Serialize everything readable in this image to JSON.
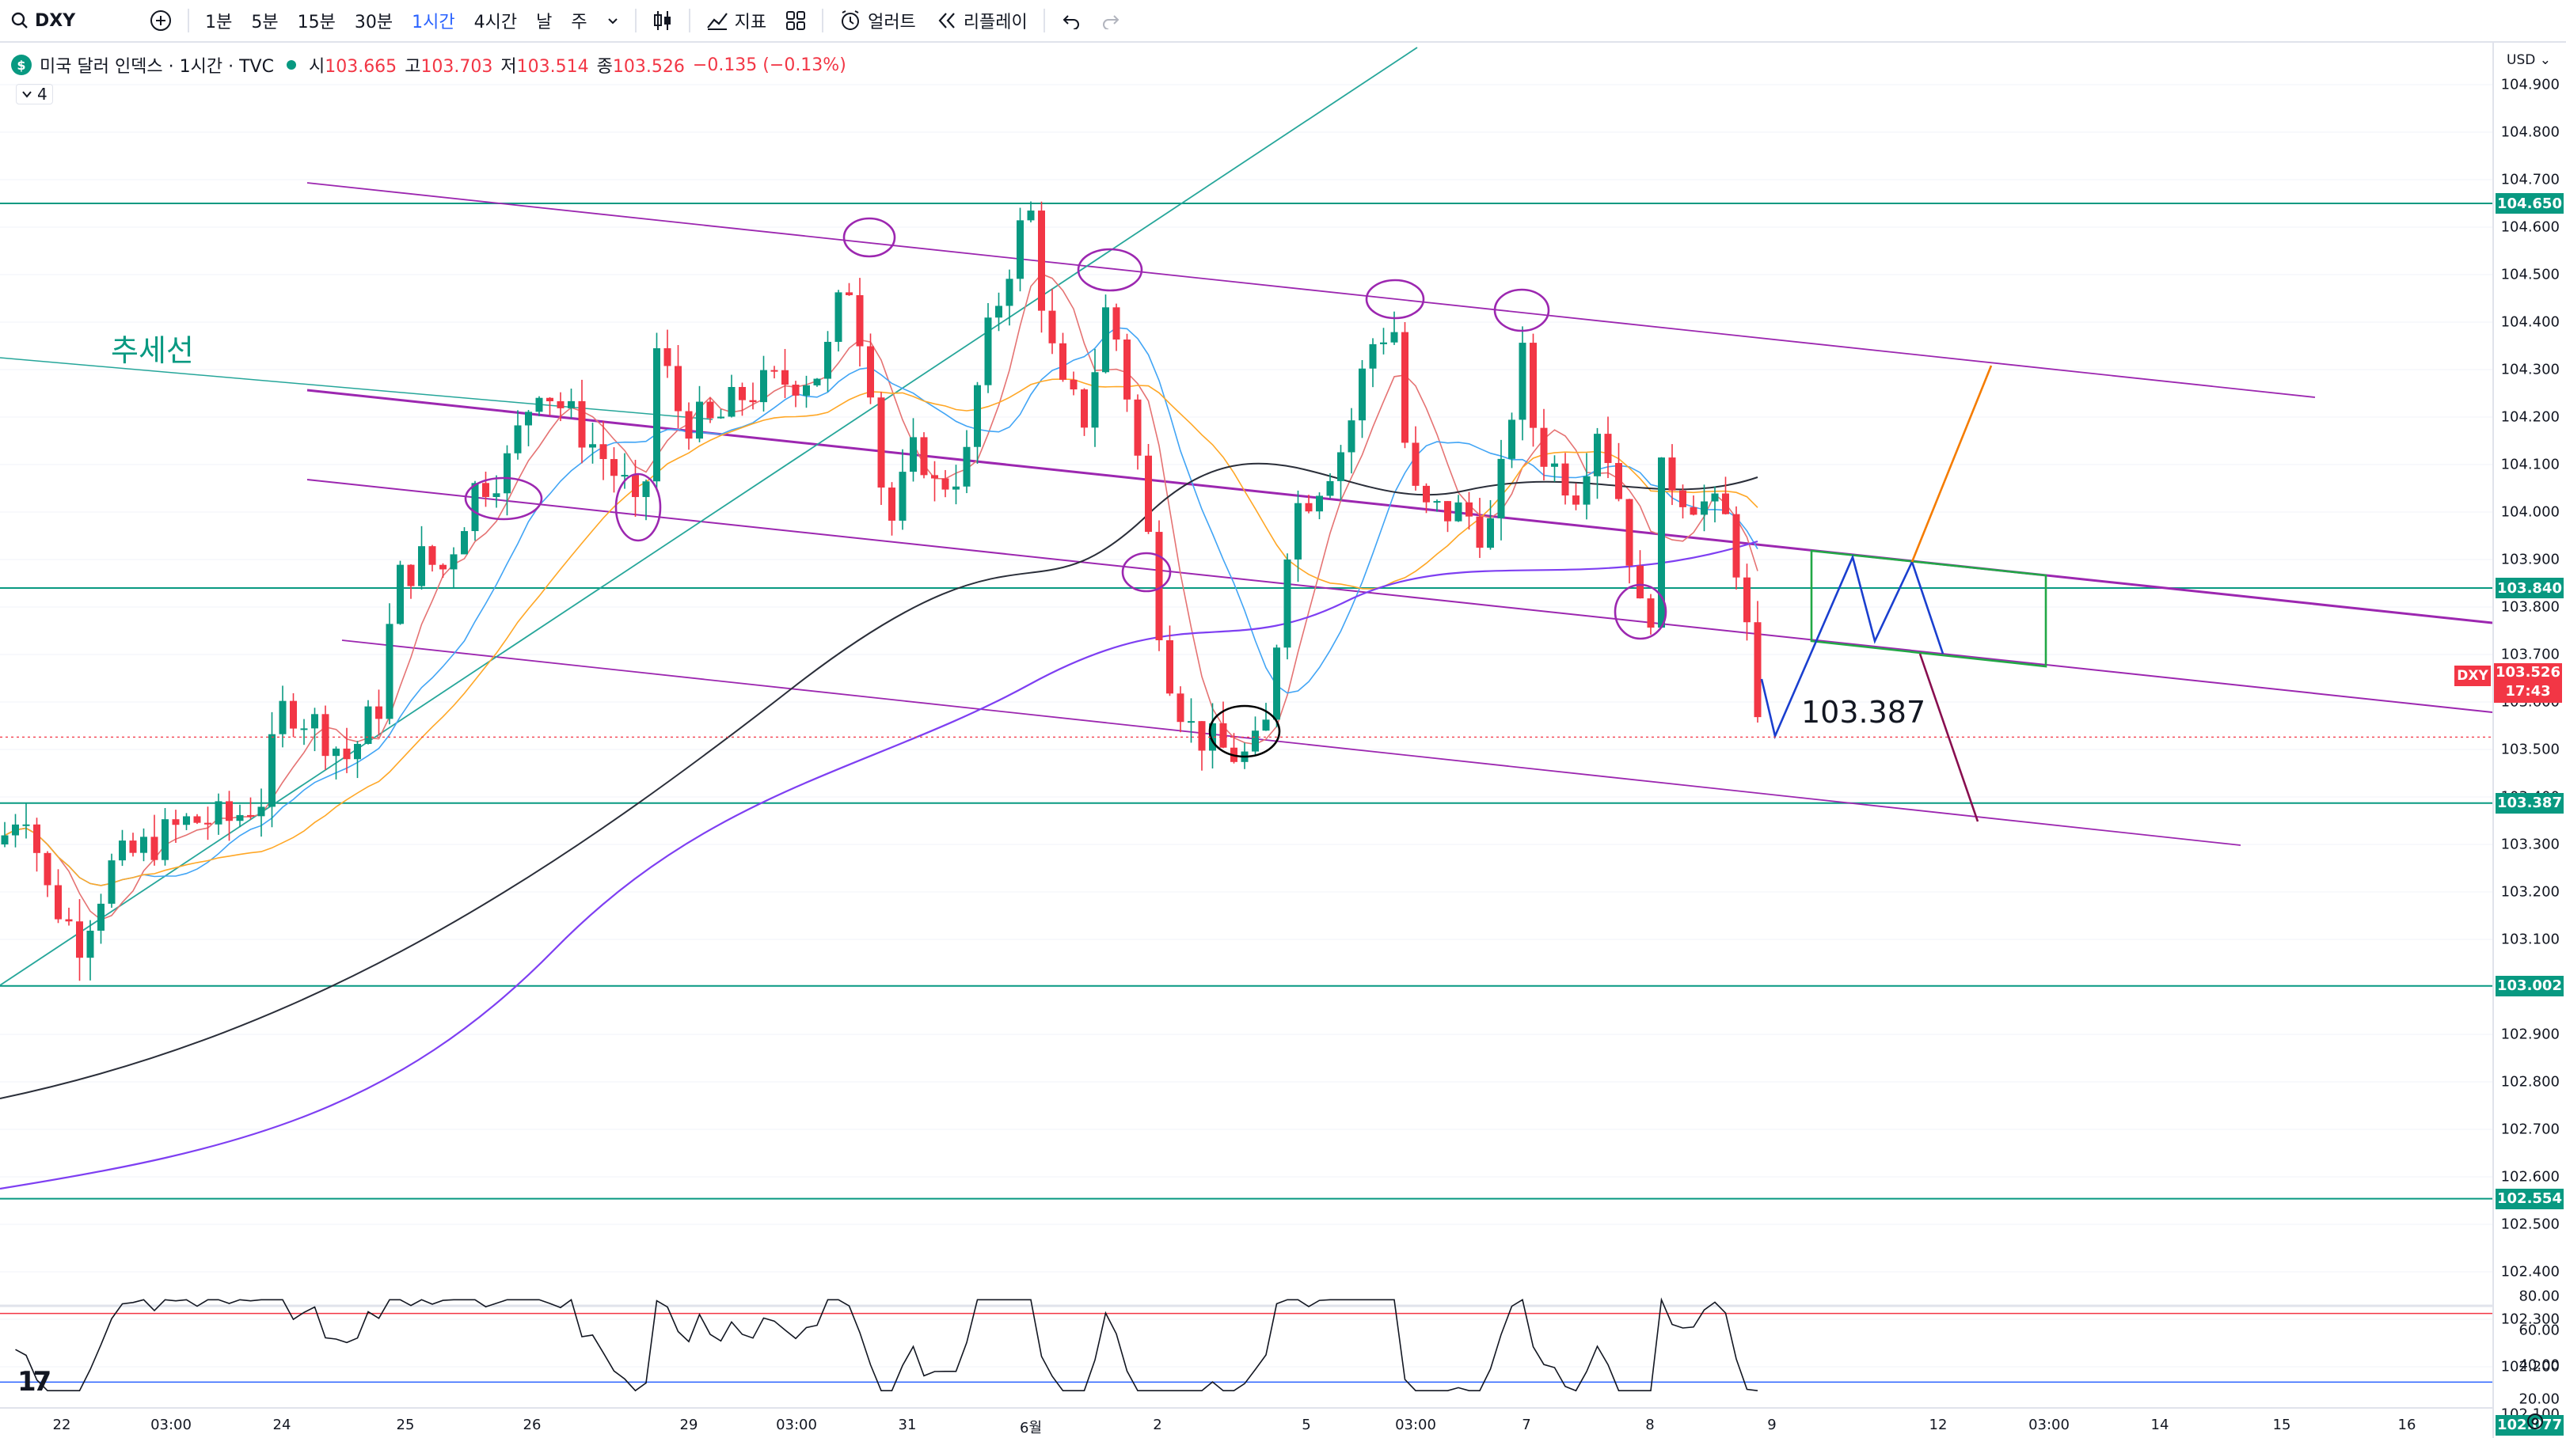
{
  "toolbar": {
    "symbol": "DXY",
    "intervals": [
      "1분",
      "5분",
      "15분",
      "30분",
      "1시간",
      "4시간",
      "날",
      "주"
    ],
    "active_interval": "1시간",
    "indicators_label": "지표",
    "alert_label": "얼러트",
    "replay_label": "리플레이",
    "icons": [
      "search-icon",
      "add-icon",
      "chevron-down-icon",
      "candles-icon",
      "indicators-icon",
      "templates-icon",
      "alarm-icon",
      "replay-icon",
      "undo-icon",
      "redo-icon"
    ]
  },
  "legend": {
    "title": "미국 달러 인덱스 · 1시간 · TVC",
    "open_label": "시",
    "open": "103.665",
    "high_label": "고",
    "high": "103.703",
    "low_label": "저",
    "low": "103.514",
    "close_label": "종",
    "close": "103.526",
    "change": "−0.135 (−0.13%)",
    "indicator_count": "4"
  },
  "price_axis": {
    "currency": "USD",
    "ticks": [
      "104.900",
      "104.800",
      "104.700",
      "104.600",
      "104.500",
      "104.400",
      "104.300",
      "104.200",
      "104.100",
      "104.000",
      "103.900",
      "103.800",
      "103.700",
      "103.600",
      "103.500",
      "103.400",
      "103.300",
      "103.200",
      "103.100",
      "103.000",
      "102.900",
      "102.800",
      "102.700",
      "102.600",
      "102.500",
      "102.400",
      "102.300",
      "102.200",
      "102.100"
    ],
    "levels": [
      "104.650",
      "103.840",
      "103.387",
      "103.002",
      "102.554",
      "102.077"
    ],
    "current_symbol": "DXY",
    "current_price": "103.526",
    "countdown": "17:43"
  },
  "rsi_axis": {
    "ticks": [
      "80.00",
      "60.00",
      "40.00",
      "20.00"
    ]
  },
  "time_axis": {
    "labels": [
      "22",
      "03:00",
      "24",
      "25",
      "26",
      "29",
      "03:00",
      "31",
      "6월",
      "2",
      "5",
      "03:00",
      "7",
      "8",
      "9",
      "12",
      "03:00",
      "14",
      "15",
      "16"
    ]
  },
  "annotations": {
    "trend_label": "추세선",
    "target_label": "103.387"
  },
  "colors": {
    "up": "#089981",
    "down": "#f23645",
    "channel": "#9c27b0",
    "level": "#089981",
    "accent": "#2962ff"
  },
  "chart_data": {
    "type": "candlestick",
    "symbol": "DXY",
    "ylim": [
      102.0,
      104.95
    ],
    "levels": [
      104.65,
      103.84,
      103.387,
      103.002,
      102.554,
      102.077
    ],
    "current": 103.526,
    "rsi_levels": [
      70,
      30
    ],
    "rsi_range": [
      20,
      80
    ]
  }
}
